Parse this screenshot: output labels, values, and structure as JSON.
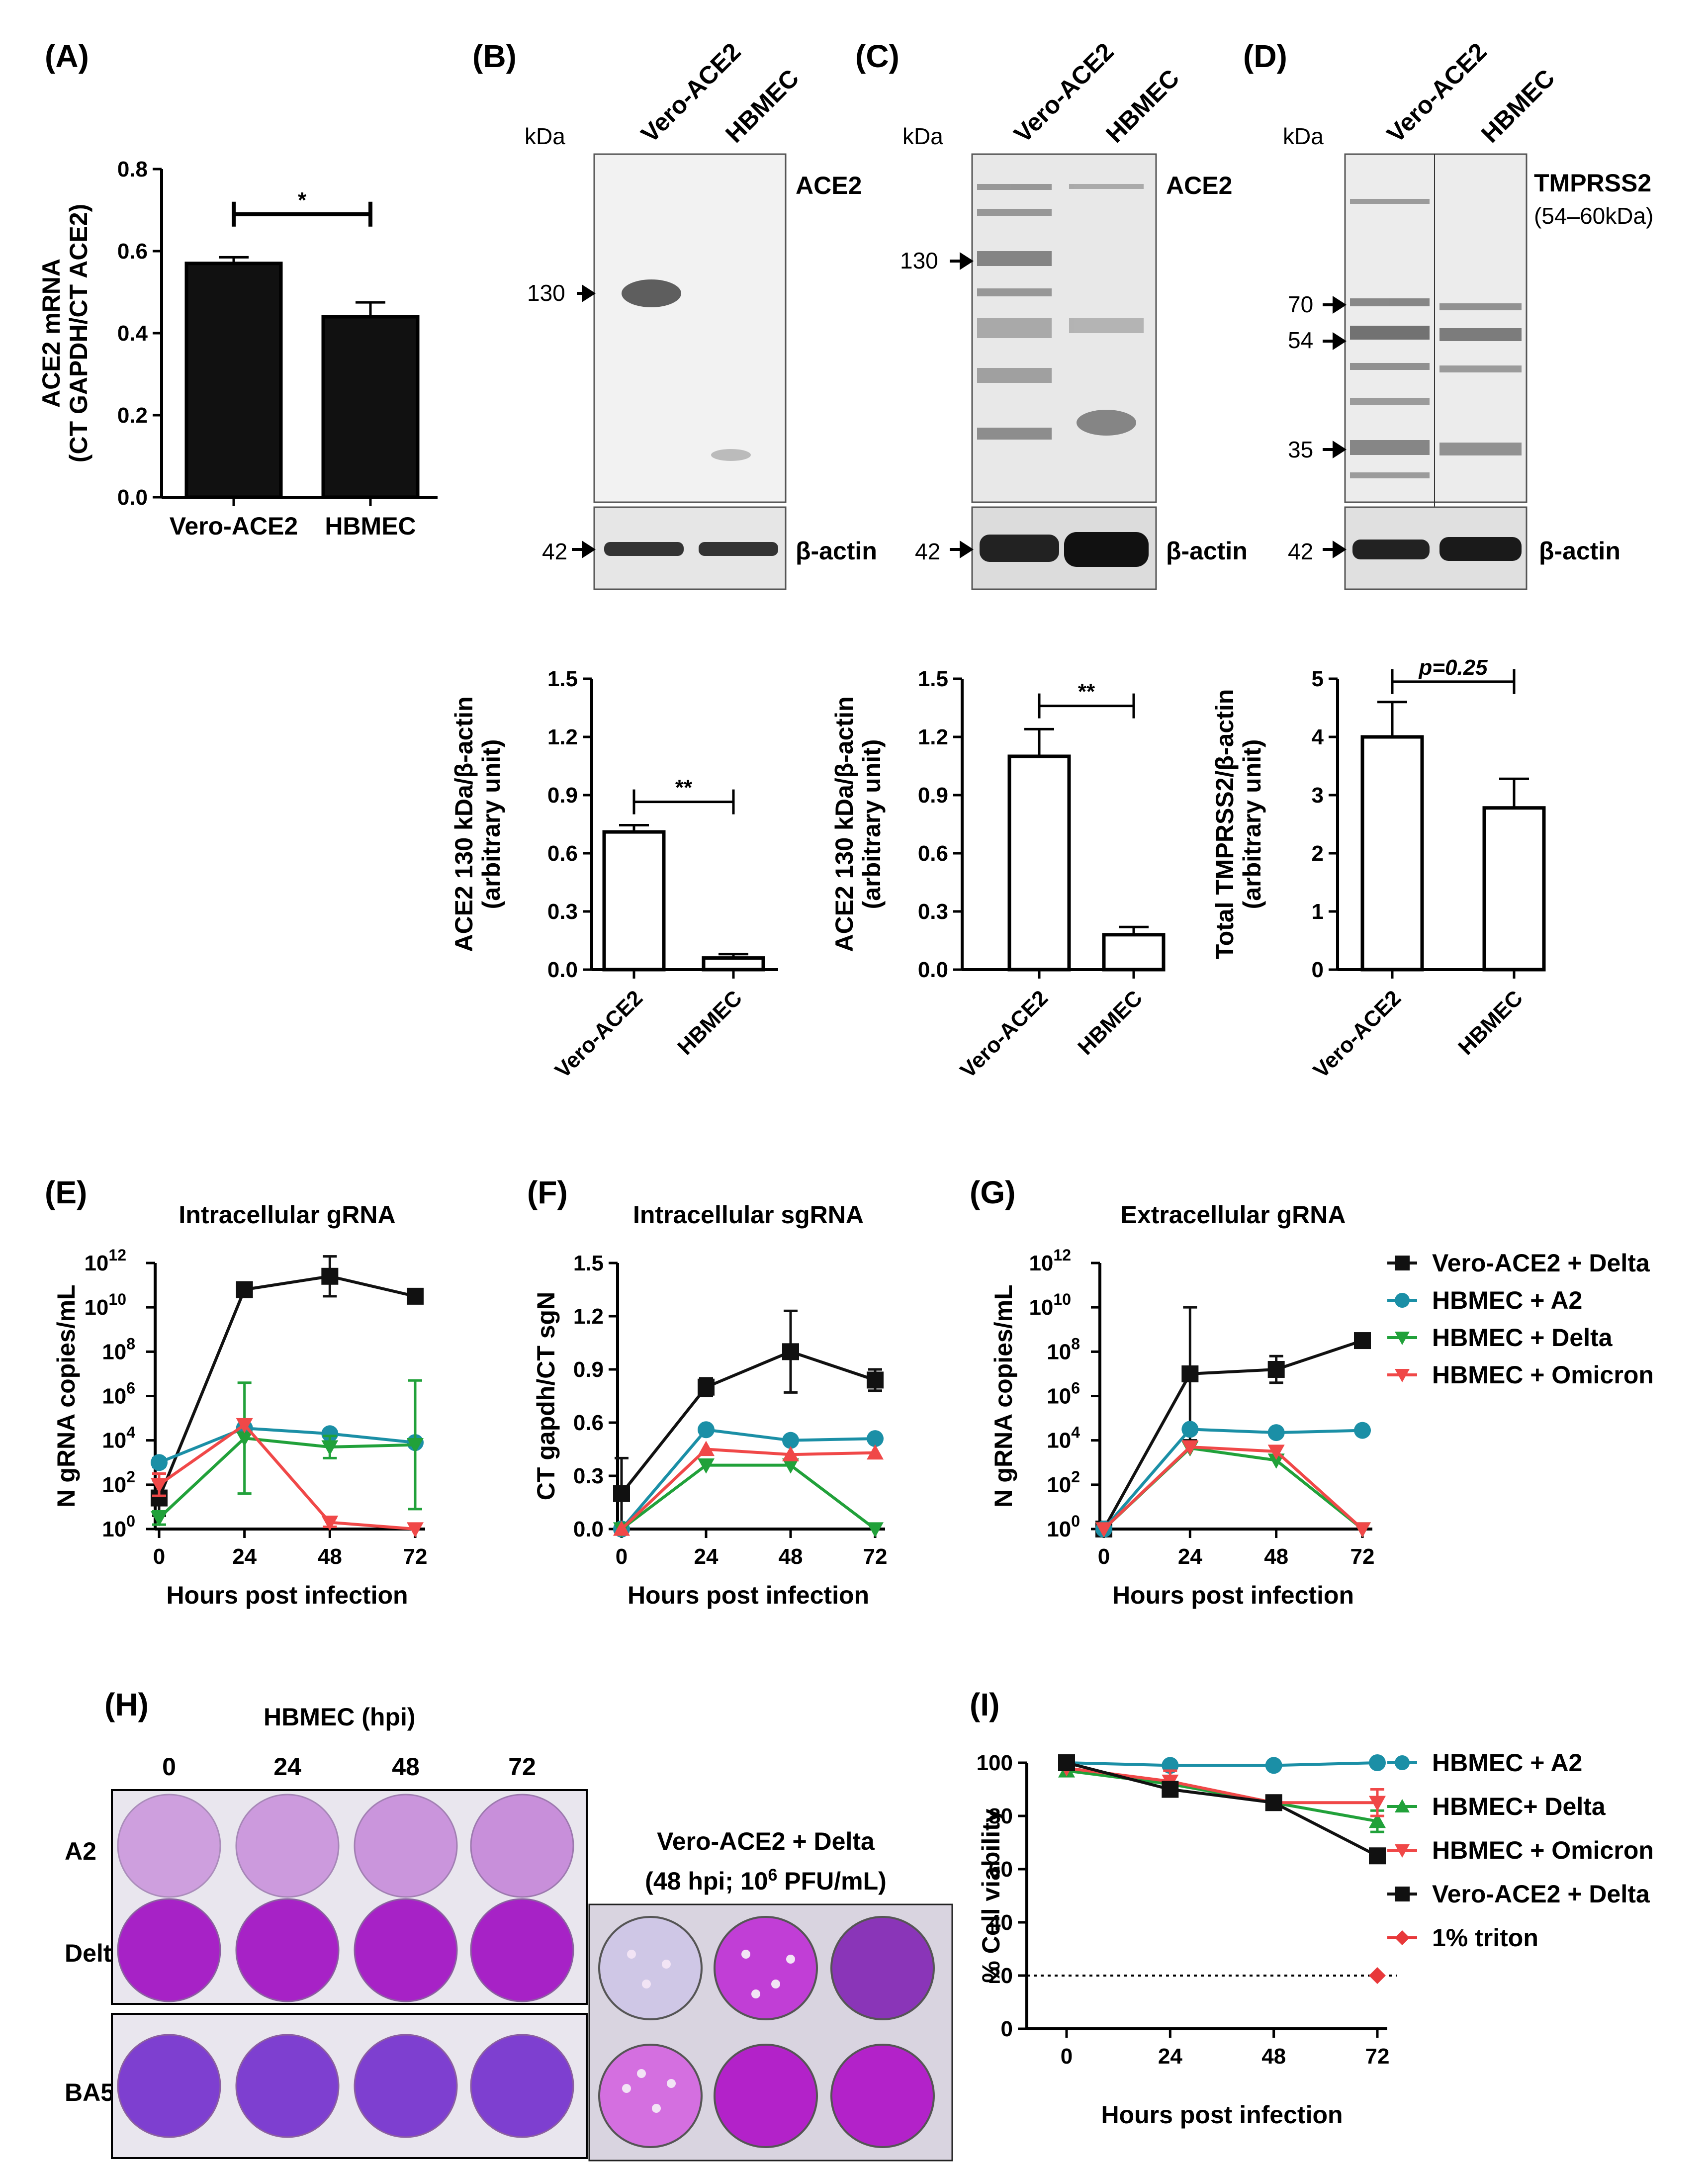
{
  "panels": [
    "(A)",
    "(B)",
    "(C)",
    "(D)",
    "(E)",
    "(F)",
    "(G)",
    "(H)",
    "(I)"
  ],
  "colors": {
    "black": "#111111",
    "teal": "#1B8FA6",
    "green": "#21A13A",
    "red": "#F04848",
    "triton": "#E8383A",
    "plate": "#B040C8"
  },
  "blots": {
    "B": {
      "kda": "kDa",
      "lanes": [
        "Vero-ACE2",
        "HBMEC"
      ],
      "target": "ACE2",
      "marker": "130",
      "actin": "β-actin",
      "actin_marker": "42"
    },
    "C": {
      "kda": "kDa",
      "lanes": [
        "Vero-ACE2",
        "HBMEC"
      ],
      "target": "ACE2",
      "marker": "130",
      "actin": "β-actin",
      "actin_marker": "42"
    },
    "D": {
      "kda": "kDa",
      "lanes": [
        "Vero-ACE2",
        "HBMEC"
      ],
      "target": "TMPRSS2",
      "target_sub": "(54–60kDa)",
      "markers": [
        "70",
        "54",
        "35"
      ],
      "actin": "β-actin",
      "actin_marker": "42"
    }
  },
  "plates": {
    "title": "HBMEC (hpi)",
    "timepoints": [
      "0",
      "24",
      "48",
      "72"
    ],
    "rows": [
      "A2",
      "Delta",
      "BA5"
    ],
    "vero_title1": "Vero-ACE2 + Delta",
    "vero_title2_pre": "(48 hpi; 10",
    "vero_title2_sup": "6",
    "vero_title2_post": " PFU/mL)"
  },
  "chart_data": [
    {
      "id": "A",
      "type": "bar",
      "categories": [
        "Vero-ACE2",
        "HBMEC"
      ],
      "values": [
        0.57,
        0.44
      ],
      "errors": [
        0.015,
        0.035
      ],
      "ylim": [
        0,
        0.8
      ],
      "yticks": [
        0.0,
        0.2,
        0.4,
        0.6,
        0.8
      ],
      "ylabel": [
        "ACE2 mRNA",
        "(CT GAPDH/CT ACE2)"
      ],
      "fill": "#111111",
      "significance": "*"
    },
    {
      "id": "B",
      "type": "bar",
      "categories": [
        "Vero-ACE2",
        "HBMEC"
      ],
      "values": [
        0.71,
        0.06
      ],
      "errors": [
        0.035,
        0.02
      ],
      "ylim": [
        0,
        1.5
      ],
      "yticks": [
        0.0,
        0.3,
        0.6,
        0.9,
        1.2,
        1.5
      ],
      "ylabel": [
        "ACE2 130 kDa/β-actin",
        "(arbitrary unit)"
      ],
      "fill": "#ffffff",
      "significance": "**"
    },
    {
      "id": "C",
      "type": "bar",
      "categories": [
        "Vero-ACE2",
        "HBMEC"
      ],
      "values": [
        1.1,
        0.18
      ],
      "errors": [
        0.14,
        0.04
      ],
      "ylim": [
        0,
        1.5
      ],
      "yticks": [
        0.0,
        0.3,
        0.6,
        0.9,
        1.2,
        1.5
      ],
      "ylabel": [
        "ACE2 130 kDa/β-actin",
        "(arbitrary unit)"
      ],
      "fill": "#ffffff",
      "significance": "**"
    },
    {
      "id": "D",
      "type": "bar",
      "categories": [
        "Vero-ACE2",
        "HBMEC"
      ],
      "values": [
        4.0,
        2.78
      ],
      "errors": [
        0.6,
        0.5
      ],
      "ylim": [
        0,
        5
      ],
      "yticks": [
        0,
        1,
        2,
        3,
        4,
        5
      ],
      "ylabel": [
        "Total TMPRSS2/β-actin",
        "(arbitrary unit)"
      ],
      "fill": "#ffffff",
      "significance": "p=0.25"
    },
    {
      "id": "E",
      "type": "line",
      "title": "Intracellular gRNA",
      "xlabel": "Hours post infection",
      "ylabel": "N gRNA copies/mL",
      "scale": "log",
      "x": [
        0,
        24,
        48,
        72
      ],
      "ylim": [
        0,
        12
      ],
      "series": [
        {
          "name": "Vero-ACE2 + Delta",
          "color": "#111111",
          "marker": "square",
          "y": [
            1.4,
            10.8,
            11.4,
            10.5
          ],
          "err": [
            0.8,
            0,
            0.9,
            0.3
          ]
        },
        {
          "name": "HBMEC + A2",
          "color": "#1B8FA6",
          "marker": "circle",
          "y": [
            3.0,
            4.55,
            4.3,
            3.9
          ],
          "err": [
            0.2,
            0,
            0,
            0
          ]
        },
        {
          "name": "HBMEC + Delta",
          "color": "#21A13A",
          "marker": "down",
          "y": [
            0.5,
            4.1,
            3.7,
            3.8
          ],
          "err": [
            0.3,
            2.5,
            0.5,
            2.9
          ]
        },
        {
          "name": "HBMEC + Omicron",
          "color": "#F04848",
          "marker": "down",
          "y": [
            2.0,
            4.7,
            0.3,
            0.0
          ],
          "err": [
            0.5,
            0,
            0.2,
            0
          ]
        }
      ]
    },
    {
      "id": "F",
      "type": "line",
      "title": "Intracellular sgRNA",
      "xlabel": "Hours post infection",
      "ylabel": "CT gapdh/CT sgN",
      "scale": "linear",
      "x": [
        0,
        24,
        48,
        72
      ],
      "ylim": [
        0,
        1.5
      ],
      "yticks": [
        0.0,
        0.3,
        0.6,
        0.9,
        1.2,
        1.5
      ],
      "series": [
        {
          "name": "Vero-ACE2 + Delta",
          "color": "#111111",
          "marker": "square",
          "y": [
            0.2,
            0.8,
            1.0,
            0.84
          ],
          "err": [
            0.2,
            0.05,
            0.23,
            0.06
          ]
        },
        {
          "name": "HBMEC + A2",
          "color": "#1B8FA6",
          "marker": "circle",
          "y": [
            0.0,
            0.56,
            0.5,
            0.51
          ],
          "err": [
            0,
            0,
            0,
            0
          ]
        },
        {
          "name": "HBMEC + Delta",
          "color": "#21A13A",
          "marker": "down",
          "y": [
            0.0,
            0.36,
            0.36,
            0.0
          ],
          "err": [
            0,
            0,
            0,
            0
          ]
        },
        {
          "name": "HBMEC + Omicron",
          "color": "#F04848",
          "marker": "up",
          "y": [
            0.0,
            0.45,
            0.42,
            0.43
          ],
          "err": [
            0,
            0,
            0,
            0
          ]
        }
      ]
    },
    {
      "id": "G",
      "type": "line",
      "title": "Extracellular gRNA",
      "xlabel": "Hours post infection",
      "ylabel": "N gRNA copies/mL",
      "scale": "log",
      "x": [
        0,
        24,
        48,
        72
      ],
      "ylim": [
        0,
        12
      ],
      "series": [
        {
          "name": "Vero-ACE2 + Delta",
          "color": "#111111",
          "marker": "square",
          "y": [
            0.0,
            7.0,
            7.2,
            8.5
          ],
          "err": [
            0,
            3.0,
            0.6,
            0
          ]
        },
        {
          "name": "HBMEC + A2",
          "color": "#1B8FA6",
          "marker": "circle",
          "y": [
            0.0,
            4.5,
            4.35,
            4.45
          ],
          "err": [
            0,
            0,
            0,
            0
          ]
        },
        {
          "name": "HBMEC + Delta",
          "color": "#21A13A",
          "marker": "down",
          "y": [
            0.0,
            3.65,
            3.1,
            0.0
          ],
          "err": [
            0,
            0,
            0,
            0
          ]
        },
        {
          "name": "HBMEC + Omicron",
          "color": "#F04848",
          "marker": "down",
          "y": [
            0.0,
            3.7,
            3.5,
            0.0
          ],
          "err": [
            0,
            0,
            0,
            0
          ]
        }
      ],
      "legend": [
        "Vero-ACE2 + Delta",
        "HBMEC + A2",
        "HBMEC + Delta",
        "HBMEC + Omicron"
      ]
    },
    {
      "id": "I",
      "type": "line",
      "xlabel": "Hours post infection",
      "ylabel": "% Cell viability",
      "scale": "linear",
      "x": [
        0,
        24,
        48,
        72
      ],
      "ylim": [
        0,
        100
      ],
      "yticks": [
        0,
        20,
        40,
        60,
        80,
        100
      ],
      "reference_line": 20,
      "series": [
        {
          "name": "HBMEC + A2",
          "color": "#1B8FA6",
          "marker": "circle",
          "y": [
            100,
            99,
            99,
            100
          ],
          "err": [
            0,
            0,
            0,
            0
          ]
        },
        {
          "name": "HBMEC+ Delta",
          "color": "#21A13A",
          "marker": "up",
          "y": [
            97,
            92,
            85,
            78
          ],
          "err": [
            0,
            0,
            0,
            4
          ]
        },
        {
          "name": "HBMEC + Omicron",
          "color": "#F04848",
          "marker": "down",
          "y": [
            98,
            93,
            85,
            85
          ],
          "err": [
            0,
            4,
            0,
            5
          ]
        },
        {
          "name": "Vero-ACE2 + Delta",
          "color": "#111111",
          "marker": "square",
          "y": [
            100,
            90,
            85,
            65
          ],
          "err": [
            0,
            0,
            0,
            0
          ]
        },
        {
          "name": "1% triton",
          "color": "#E8383A",
          "marker": "diamond",
          "y": [
            null,
            null,
            null,
            20
          ],
          "err": [
            0,
            0,
            0,
            0
          ]
        }
      ],
      "legend": [
        "HBMEC + A2",
        "HBMEC+ Delta",
        "HBMEC + Omicron",
        "Vero-ACE2 + Delta",
        "1% triton"
      ]
    }
  ]
}
